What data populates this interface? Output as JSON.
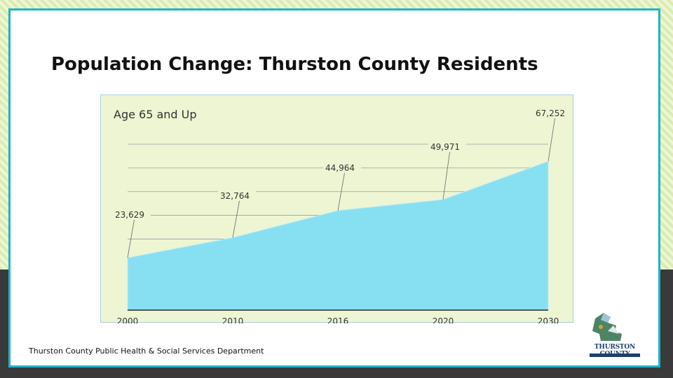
{
  "slide": {
    "title": "Population Change: Thurston County Residents",
    "footer": "Thurston County Public Health & Social Services Department",
    "logo_text": "THURSTON COUNTY"
  },
  "colors": {
    "accent_border": "#1fb3c9",
    "area_fill": "#86e0f2",
    "chart_background": "#eef5d3"
  },
  "chart_data": {
    "type": "area",
    "title": "Age 65 and Up",
    "x": [
      "2000",
      "2010",
      "2016",
      "2020",
      "2030"
    ],
    "values": [
      23629,
      32764,
      44964,
      49971,
      67252
    ],
    "labels": [
      "23,629",
      "32,764",
      "44,964",
      "49,971",
      "67,252"
    ],
    "grid": true,
    "legend": "none"
  }
}
